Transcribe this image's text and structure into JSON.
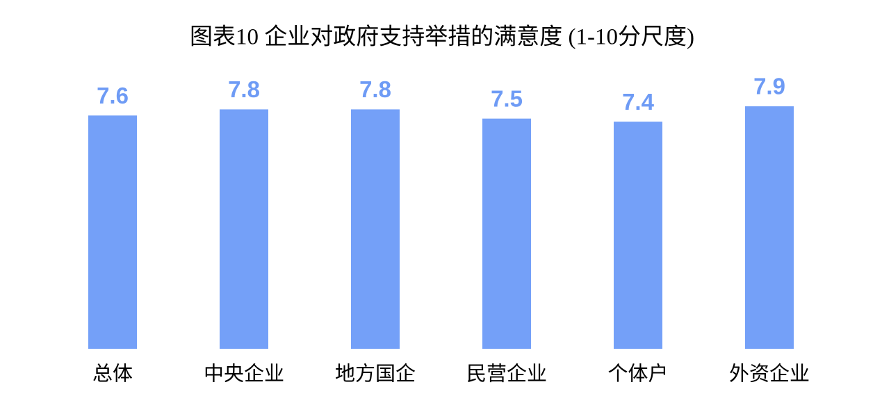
{
  "chart_data": {
    "type": "bar",
    "title": "图表10  企业对政府支持举措的满意度 (1-10分尺度)",
    "categories": [
      "总体",
      "中央企业",
      "地方国企",
      "民营企业",
      "个体户",
      "外资企业"
    ],
    "values": [
      7.6,
      7.8,
      7.8,
      7.5,
      7.4,
      7.9
    ],
    "color": "#74a0f8"
  }
}
